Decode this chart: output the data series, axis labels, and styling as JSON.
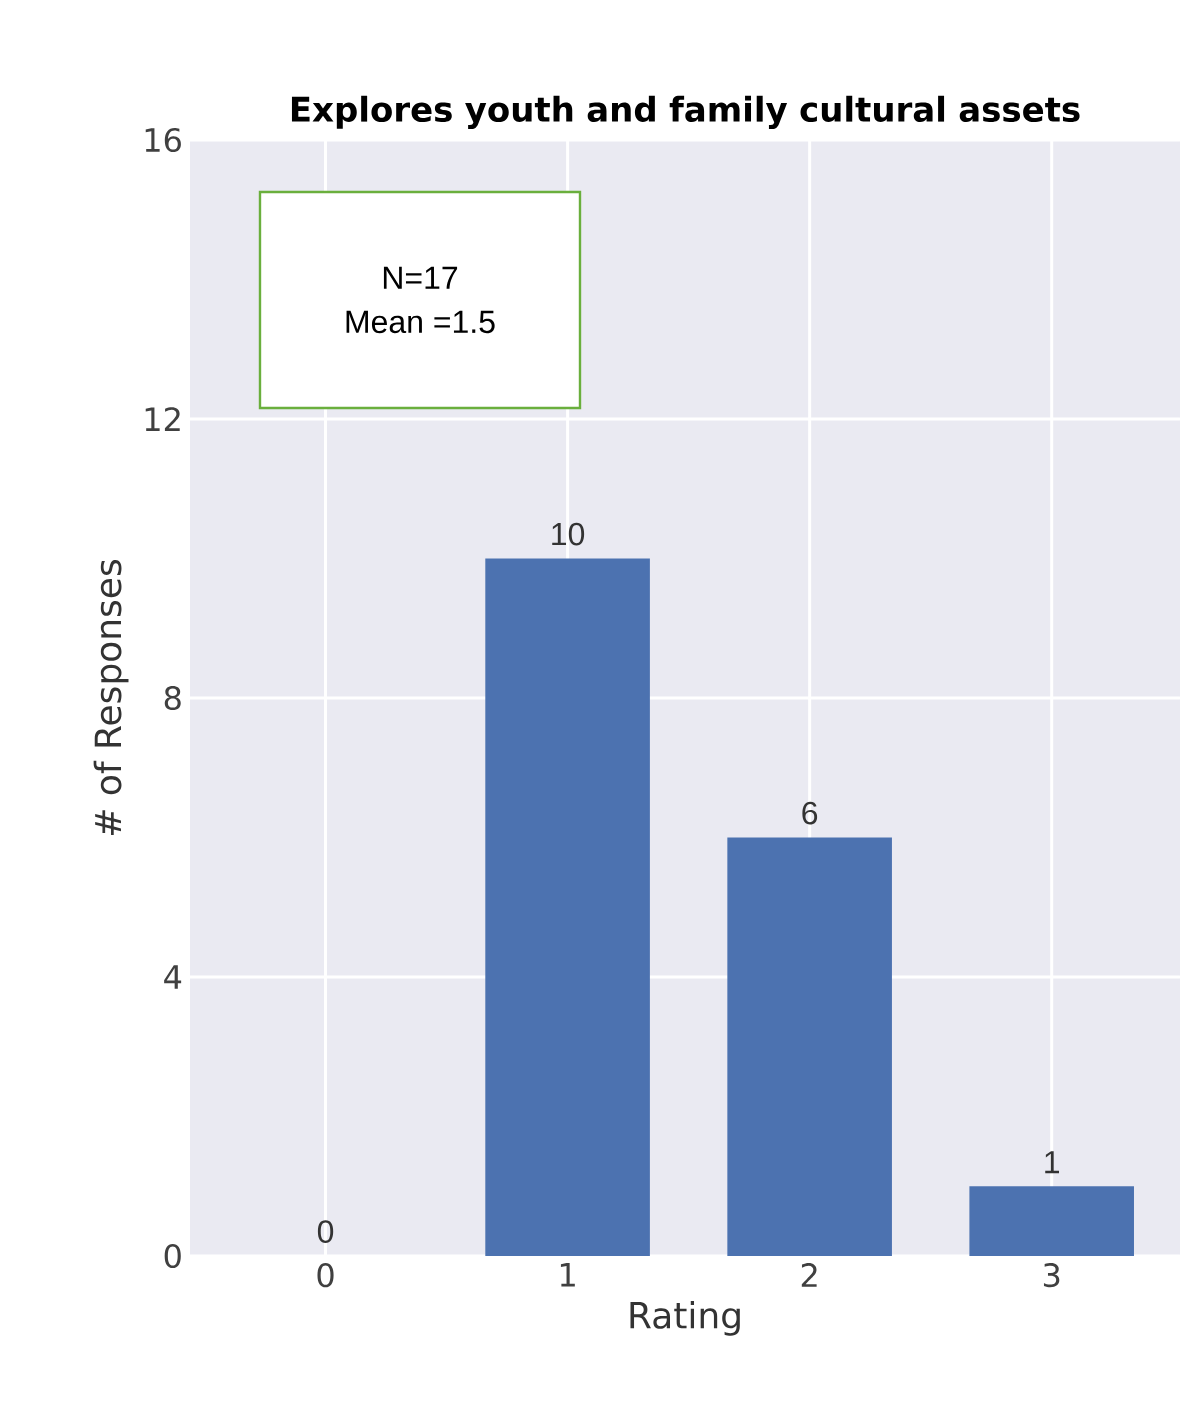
{
  "chart_data": {
    "type": "bar",
    "title": "Explores youth and family cultural assets",
    "xlabel": "Rating",
    "ylabel": "# of Responses",
    "categories": [
      "0",
      "1",
      "2",
      "3"
    ],
    "values": [
      0,
      10,
      6,
      1
    ],
    "color": "#4c72b0",
    "ylim": [
      0,
      16
    ],
    "yticks": [
      0,
      4,
      8,
      12,
      16
    ],
    "grid": true,
    "data_labels": true,
    "annotations": [
      "N=17",
      "Mean =1.5"
    ]
  }
}
